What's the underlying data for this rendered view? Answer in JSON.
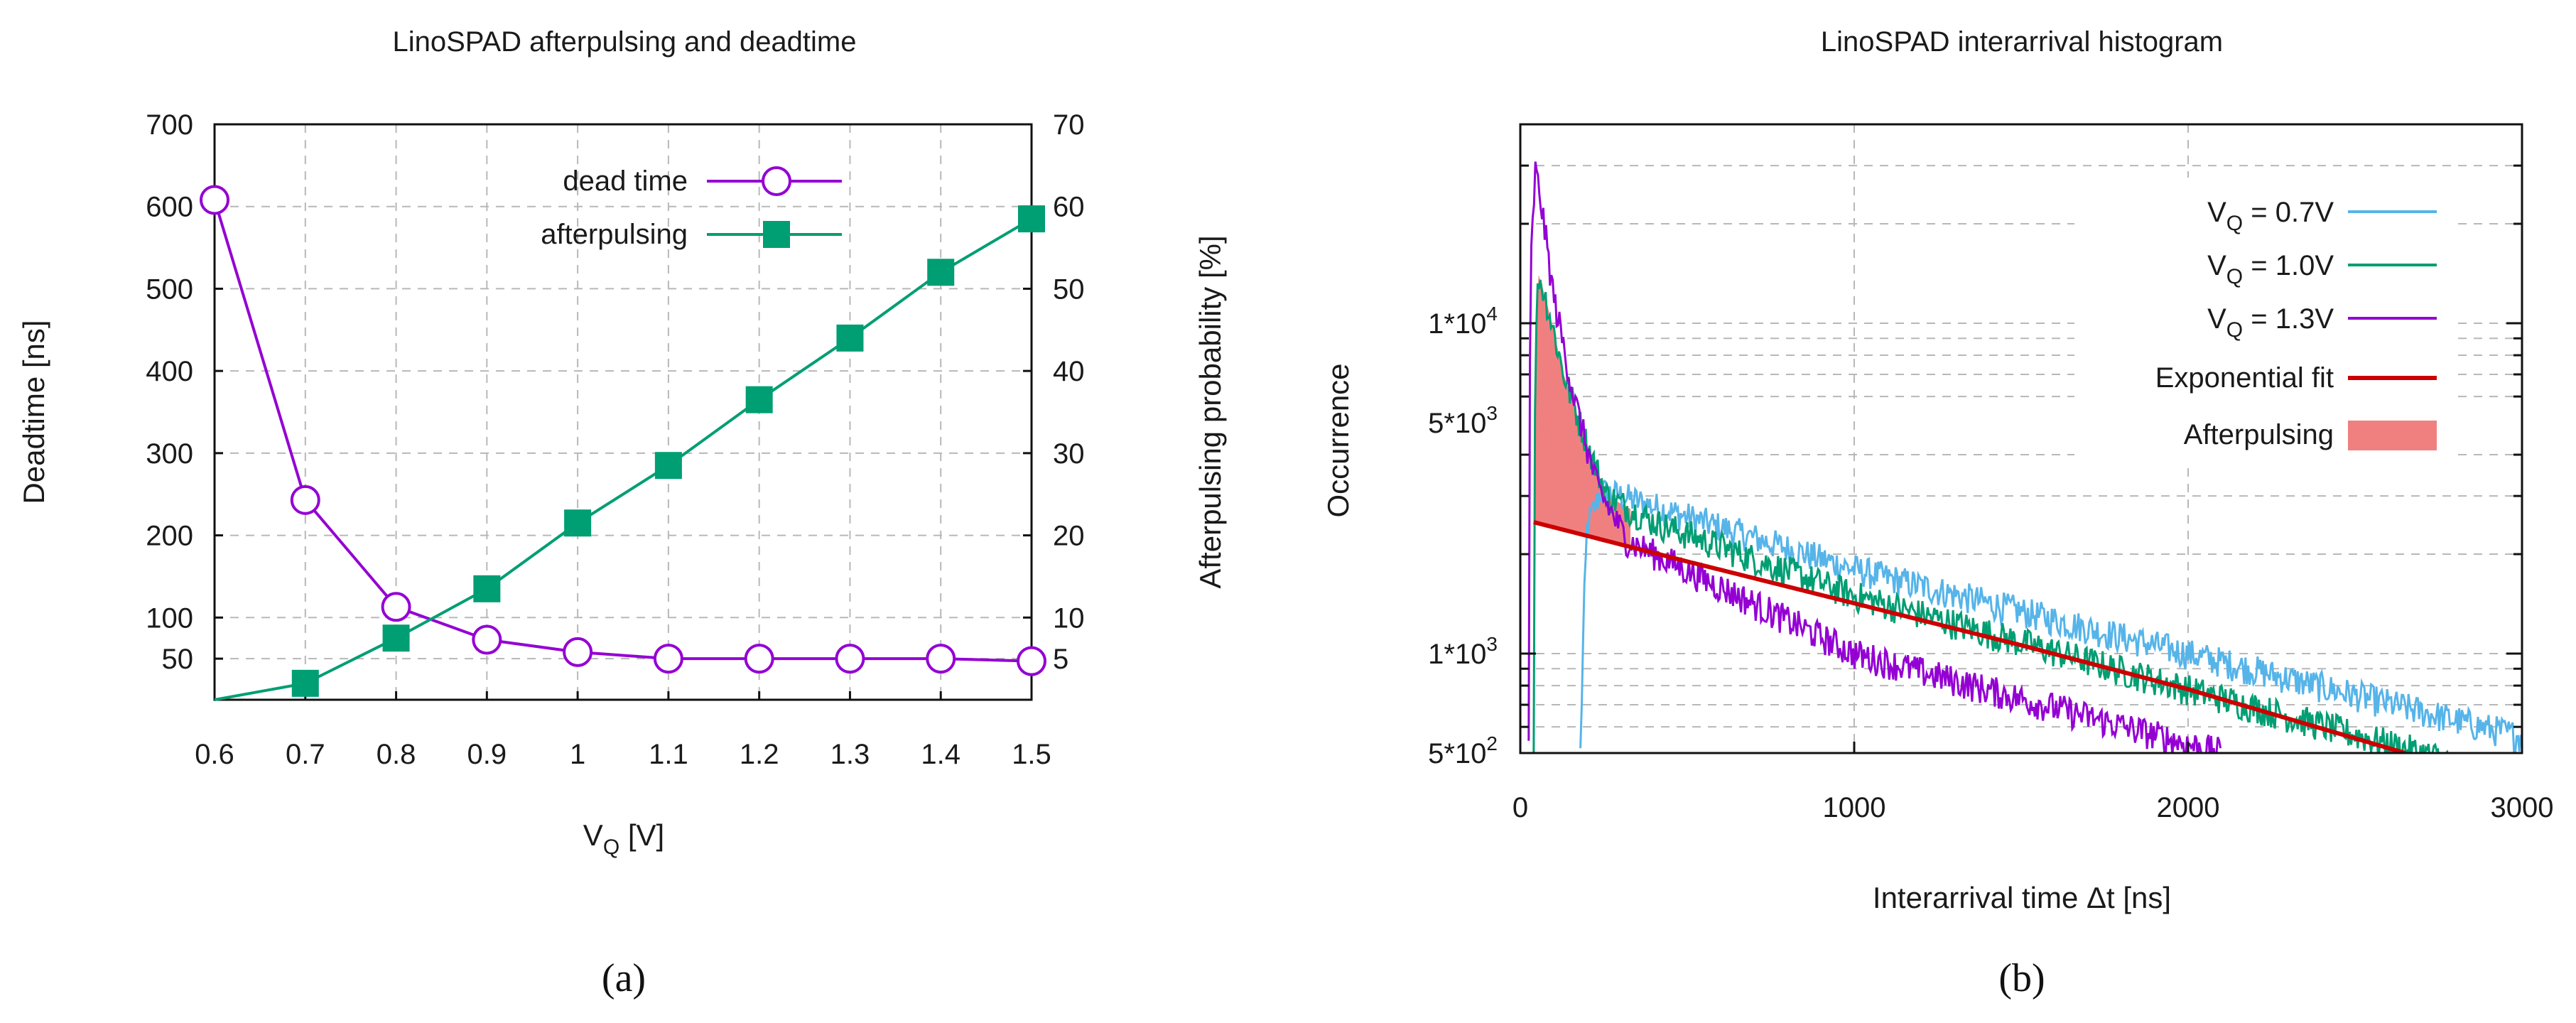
{
  "chart_data": [
    {
      "type": "line",
      "title": "LinoSPAD afterpulsing and deadtime",
      "xlabel": "V_Q  [V]",
      "ylabel_left": "Deadtime [ns]",
      "ylabel_right": "Afterpulsing probability [%]",
      "x": [
        0.6,
        0.7,
        0.8,
        0.9,
        1.0,
        1.1,
        1.2,
        1.3,
        1.4,
        1.5
      ],
      "x_tick_labels": [
        "0.6",
        "0.7",
        "0.8",
        "0.9",
        "1",
        "1.1",
        "1.2",
        "1.3",
        "1.4",
        "1.5"
      ],
      "xlim": [
        0.6,
        1.5
      ],
      "ylim_left": [
        0,
        700
      ],
      "ylim_right": [
        0,
        70
      ],
      "y_left_tick_labels": [
        "50",
        "100",
        "200",
        "300",
        "400",
        "500",
        "600",
        "700"
      ],
      "y_left_ticks": [
        50,
        100,
        200,
        300,
        400,
        500,
        600,
        700
      ],
      "y_right_tick_labels": [
        "5",
        "10",
        "20",
        "30",
        "40",
        "50",
        "60",
        "70"
      ],
      "y_right_ticks": [
        5,
        10,
        20,
        30,
        40,
        50,
        60,
        70
      ],
      "series": [
        {
          "name": "dead time",
          "axis": "left",
          "color": "#9400d3",
          "marker": "open-circle",
          "values": [
            608,
            243,
            113,
            73,
            58,
            50,
            50,
            50,
            50,
            47
          ]
        },
        {
          "name": "afterpulsing",
          "axis": "right",
          "color": "#009e73",
          "marker": "filled-square",
          "x": [
            0.7,
            0.8,
            0.9,
            1.0,
            1.1,
            1.2,
            1.3,
            1.4,
            1.5
          ],
          "values": [
            2,
            7.5,
            13.5,
            21.5,
            28.5,
            36.5,
            44,
            52,
            58.5
          ]
        }
      ],
      "legend_position": "top-right"
    },
    {
      "type": "line",
      "title": "LinoSPAD interarrival histogram",
      "xlabel": "Interarrival time  Δt [ns]",
      "ylabel": "Occurrence",
      "y_scale": "log",
      "xlim": [
        0,
        3000
      ],
      "ylim": [
        500,
        40000
      ],
      "x_ticks": [
        0,
        1000,
        2000,
        3000
      ],
      "x_tick_labels": [
        "0",
        "1000",
        "2000",
        "3000"
      ],
      "y_ticks": [
        500,
        1000,
        5000,
        10000
      ],
      "y_tick_labels": [
        "5*10",
        "1*10",
        "5*10",
        "1*10"
      ],
      "y_tick_exponents": [
        "2",
        "3",
        "3",
        "4"
      ],
      "series": [
        {
          "name": "V_Q = 0.7V",
          "label_sub": "Q",
          "label_rest": " = 0.7V",
          "color": "#56b4e9",
          "points": [
            [
              180,
              500
            ],
            [
              190,
              1300
            ],
            [
              200,
              2400
            ],
            [
              240,
              3100
            ],
            [
              300,
              3000
            ],
            [
              1000,
              1800
            ],
            [
              2000,
              1000
            ],
            [
              3000,
              560
            ]
          ]
        },
        {
          "name": "V_Q = 1.0V",
          "label_sub": "Q",
          "label_rest": " = 1.0V",
          "color": "#009e73",
          "points": [
            [
              40,
              500
            ],
            [
              45,
              9000
            ],
            [
              55,
              14000
            ],
            [
              80,
              11500
            ],
            [
              130,
              7000
            ],
            [
              200,
              4300
            ],
            [
              260,
              3000
            ],
            [
              400,
              2500
            ],
            [
              1000,
              1500
            ],
            [
              2000,
              780
            ],
            [
              2800,
              470
            ]
          ]
        },
        {
          "name": "V_Q = 1.3V",
          "label_sub": "Q",
          "label_rest": " = 1.3V",
          "color": "#9400d3",
          "points": [
            [
              25,
              500
            ],
            [
              30,
              14000
            ],
            [
              45,
              29000
            ],
            [
              60,
              24000
            ],
            [
              100,
              12000
            ],
            [
              160,
              6000
            ],
            [
              230,
              3200
            ],
            [
              320,
              2200
            ],
            [
              1000,
              1000
            ],
            [
              2100,
              500
            ]
          ]
        },
        {
          "name": "Exponential fit",
          "color": "#cc0000",
          "points": [
            [
              40,
              2500
            ],
            [
              500,
              1900
            ],
            [
              1000,
              1420
            ],
            [
              1500,
              1060
            ],
            [
              2000,
              780
            ],
            [
              2650,
              500
            ]
          ]
        }
      ],
      "afterpulsing_region": {
        "name": "Afterpulsing",
        "color": "#f08080"
      },
      "legend_position": "top-right"
    }
  ],
  "captions": [
    "(a)",
    "(b)"
  ]
}
